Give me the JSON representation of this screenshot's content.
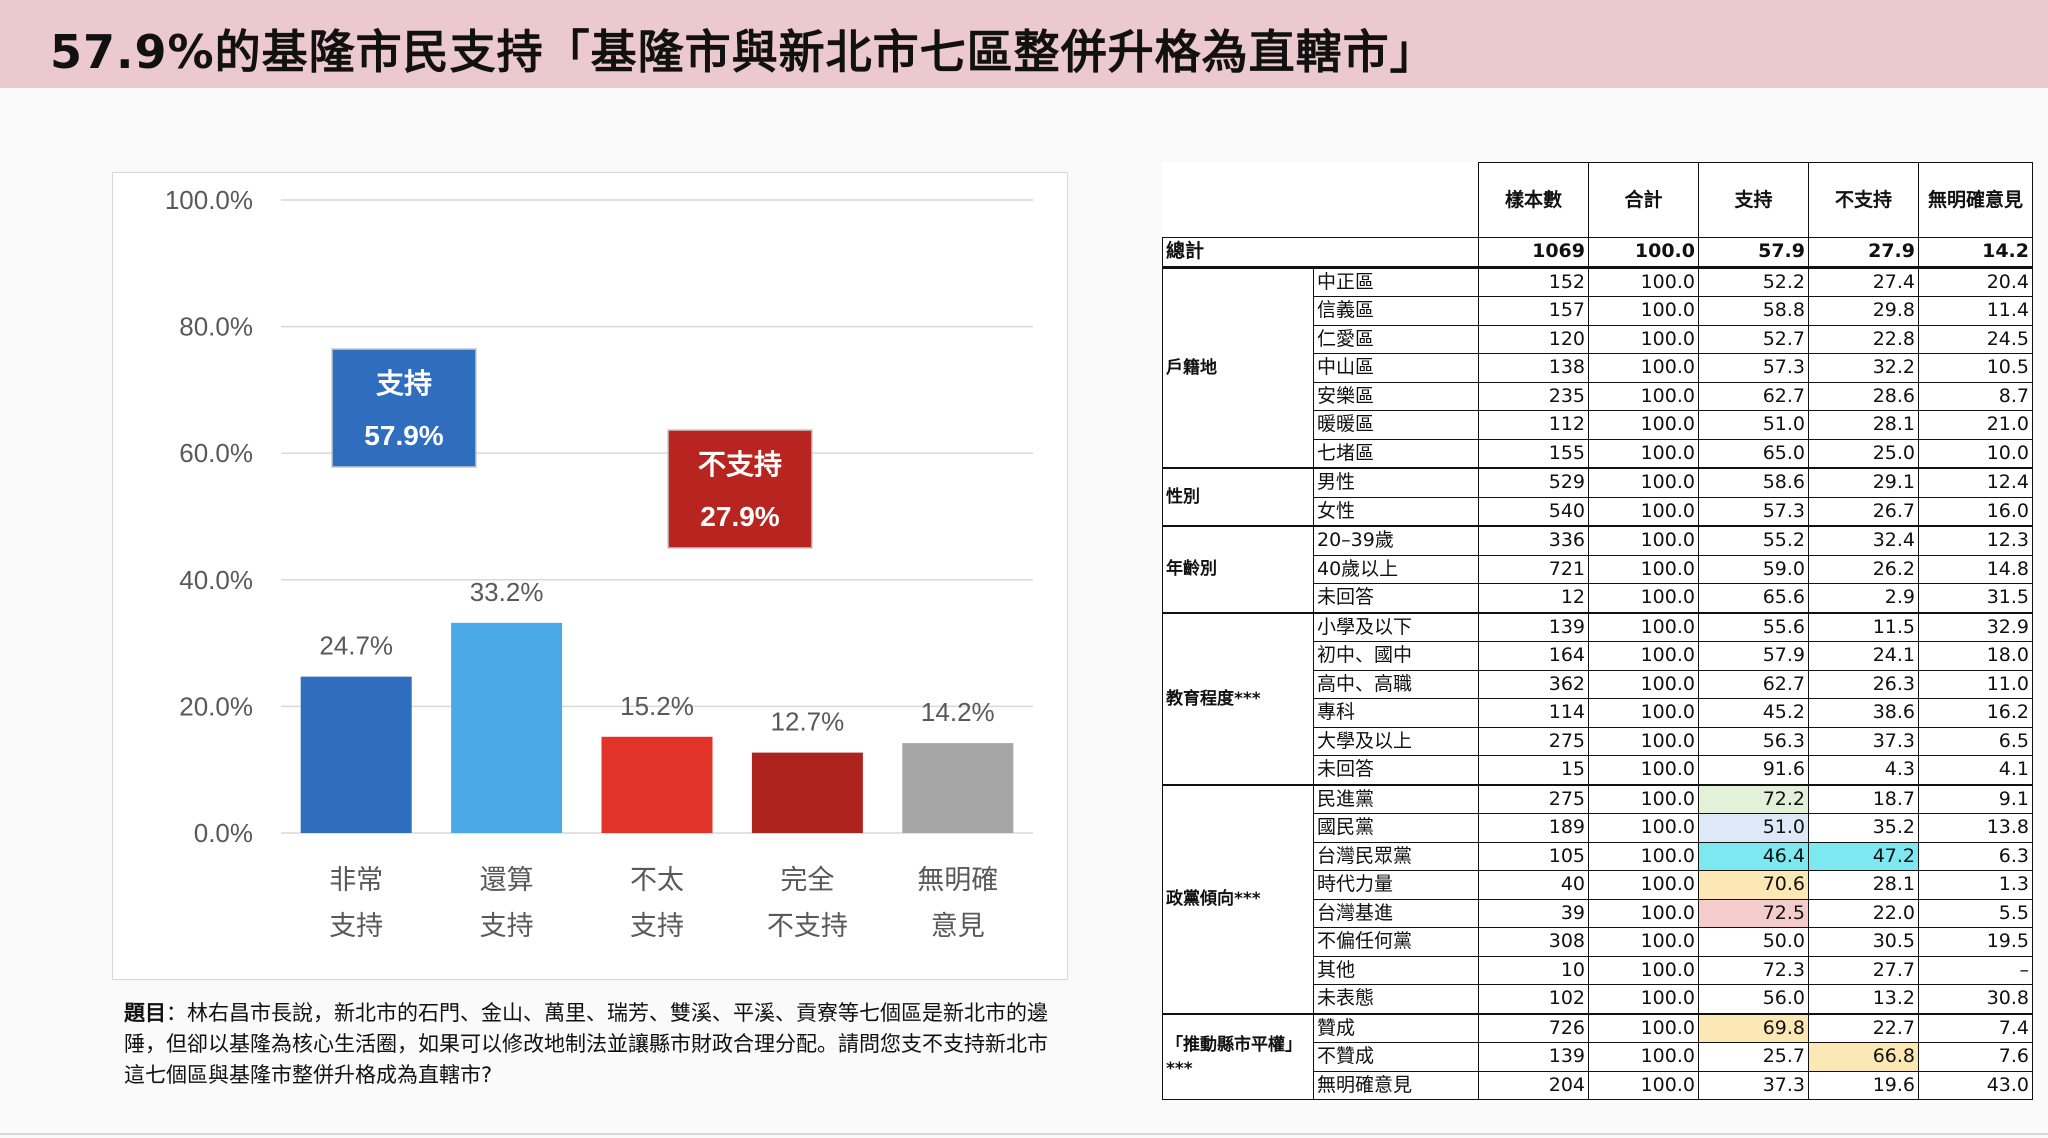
{
  "title": "57.9%的基隆市民支持「基隆市與新北市七區整併升格為直轄市」",
  "chart_data": {
    "type": "bar",
    "categories": [
      [
        "非常",
        "支持"
      ],
      [
        "還算",
        "支持"
      ],
      [
        "不太",
        "支持"
      ],
      [
        "完全",
        "不支持"
      ],
      [
        "無明確",
        "意見"
      ]
    ],
    "values": [
      24.7,
      33.2,
      15.2,
      12.7,
      14.2
    ],
    "value_labels": [
      "24.7%",
      "33.2%",
      "15.2%",
      "12.7%",
      "14.2%"
    ],
    "colors": [
      "#2f6dbe",
      "#4aa9e6",
      "#e2332a",
      "#ae231e",
      "#a6a6a6"
    ],
    "ylim": [
      0,
      100
    ],
    "yticks": [
      "0.0%",
      "20.0%",
      "40.0%",
      "60.0%",
      "80.0%",
      "100.0%"
    ],
    "yticks_values": [
      0,
      20,
      40,
      60,
      80,
      100
    ],
    "grid": true,
    "annotations": [
      {
        "line1": "支持",
        "line2": "57.9%",
        "color": "#2f6dbe"
      },
      {
        "line1": "不支持",
        "line2": "27.9%",
        "color": "#b8241f"
      }
    ]
  },
  "question_label": "題目",
  "question_text": "：林右昌市長說，新北市的石門、金山、萬里、瑞芳、雙溪、平溪、貢寮等七個區是新北市的邊陲，但卻以基隆為核心生活圈，如果可以修改地制法並讓縣市財政合理分配。請問您支不支持新北市這七個區與基隆市整併升格成為直轄市?",
  "table": {
    "headers": [
      "樣本數",
      "合計",
      "支持",
      "不支持",
      "無明確意見"
    ],
    "total": {
      "label": "總計",
      "values": [
        "1069",
        "100.0",
        "57.9",
        "27.9",
        "14.2"
      ]
    },
    "groups": [
      {
        "name": "戶籍地",
        "rows": [
          {
            "label": "中正區",
            "values": [
              "152",
              "100.0",
              "52.2",
              "27.4",
              "20.4"
            ]
          },
          {
            "label": "信義區",
            "values": [
              "157",
              "100.0",
              "58.8",
              "29.8",
              "11.4"
            ]
          },
          {
            "label": "仁愛區",
            "values": [
              "120",
              "100.0",
              "52.7",
              "22.8",
              "24.5"
            ]
          },
          {
            "label": "中山區",
            "values": [
              "138",
              "100.0",
              "57.3",
              "32.2",
              "10.5"
            ]
          },
          {
            "label": "安樂區",
            "values": [
              "235",
              "100.0",
              "62.7",
              "28.6",
              "8.7"
            ]
          },
          {
            "label": "暖暖區",
            "values": [
              "112",
              "100.0",
              "51.0",
              "28.1",
              "21.0"
            ]
          },
          {
            "label": "七堵區",
            "values": [
              "155",
              "100.0",
              "65.0",
              "25.0",
              "10.0"
            ]
          }
        ]
      },
      {
        "name": "性別",
        "rows": [
          {
            "label": "男性",
            "values": [
              "529",
              "100.0",
              "58.6",
              "29.1",
              "12.4"
            ]
          },
          {
            "label": "女性",
            "values": [
              "540",
              "100.0",
              "57.3",
              "26.7",
              "16.0"
            ]
          }
        ]
      },
      {
        "name": "年齡別",
        "rows": [
          {
            "label": "20–39歲",
            "values": [
              "336",
              "100.0",
              "55.2",
              "32.4",
              "12.3"
            ]
          },
          {
            "label": "40歲以上",
            "values": [
              "721",
              "100.0",
              "59.0",
              "26.2",
              "14.8"
            ]
          },
          {
            "label": "未回答",
            "values": [
              "12",
              "100.0",
              "65.6",
              "2.9",
              "31.5"
            ]
          }
        ]
      },
      {
        "name": "教育程度***",
        "rows": [
          {
            "label": "小學及以下",
            "values": [
              "139",
              "100.0",
              "55.6",
              "11.5",
              "32.9"
            ]
          },
          {
            "label": "初中、國中",
            "values": [
              "164",
              "100.0",
              "57.9",
              "24.1",
              "18.0"
            ]
          },
          {
            "label": "高中、高職",
            "values": [
              "362",
              "100.0",
              "62.7",
              "26.3",
              "11.0"
            ]
          },
          {
            "label": "專科",
            "values": [
              "114",
              "100.0",
              "45.2",
              "38.6",
              "16.2"
            ]
          },
          {
            "label": "大學及以上",
            "values": [
              "275",
              "100.0",
              "56.3",
              "37.3",
              "6.5"
            ]
          },
          {
            "label": "未回答",
            "values": [
              "15",
              "100.0",
              "91.6",
              "4.3",
              "4.1"
            ]
          }
        ]
      },
      {
        "name": "政黨傾向***",
        "rows": [
          {
            "label": "民進黨",
            "values": [
              "275",
              "100.0",
              "72.2",
              "18.7",
              "9.1"
            ],
            "hl": {
              "2": "#e3f1d9"
            }
          },
          {
            "label": "國民黨",
            "values": [
              "189",
              "100.0",
              "51.0",
              "35.2",
              "13.8"
            ],
            "hl": {
              "2": "#dde9f7"
            }
          },
          {
            "label": "台灣民眾黨",
            "values": [
              "105",
              "100.0",
              "46.4",
              "47.2",
              "6.3"
            ],
            "hl": {
              "2": "#7de8ef",
              "3": "#7de8ef"
            }
          },
          {
            "label": "時代力量",
            "values": [
              "40",
              "100.0",
              "70.6",
              "28.1",
              "1.3"
            ],
            "hl": {
              "2": "#fbe8b4"
            }
          },
          {
            "label": "台灣基進",
            "values": [
              "39",
              "100.0",
              "72.5",
              "22.0",
              "5.5"
            ],
            "hl": {
              "2": "#f5cccc"
            }
          },
          {
            "label": "不偏任何黨",
            "values": [
              "308",
              "100.0",
              "50.0",
              "30.5",
              "19.5"
            ]
          },
          {
            "label": "其他",
            "values": [
              "10",
              "100.0",
              "72.3",
              "27.7",
              "–"
            ]
          },
          {
            "label": "未表態",
            "values": [
              "102",
              "100.0",
              "56.0",
              "13.2",
              "30.8"
            ]
          }
        ]
      },
      {
        "name": "「推動縣市平權」***",
        "rows": [
          {
            "label": "贊成",
            "values": [
              "726",
              "100.0",
              "69.8",
              "22.7",
              "7.4"
            ],
            "hl": {
              "2": "#fbe8b4"
            }
          },
          {
            "label": "不贊成",
            "values": [
              "139",
              "100.0",
              "25.7",
              "66.8",
              "7.6"
            ],
            "hl": {
              "3": "#fbe8b4"
            }
          },
          {
            "label": "無明確意見",
            "values": [
              "204",
              "100.0",
              "37.3",
              "19.6",
              "43.0"
            ]
          }
        ]
      }
    ]
  }
}
